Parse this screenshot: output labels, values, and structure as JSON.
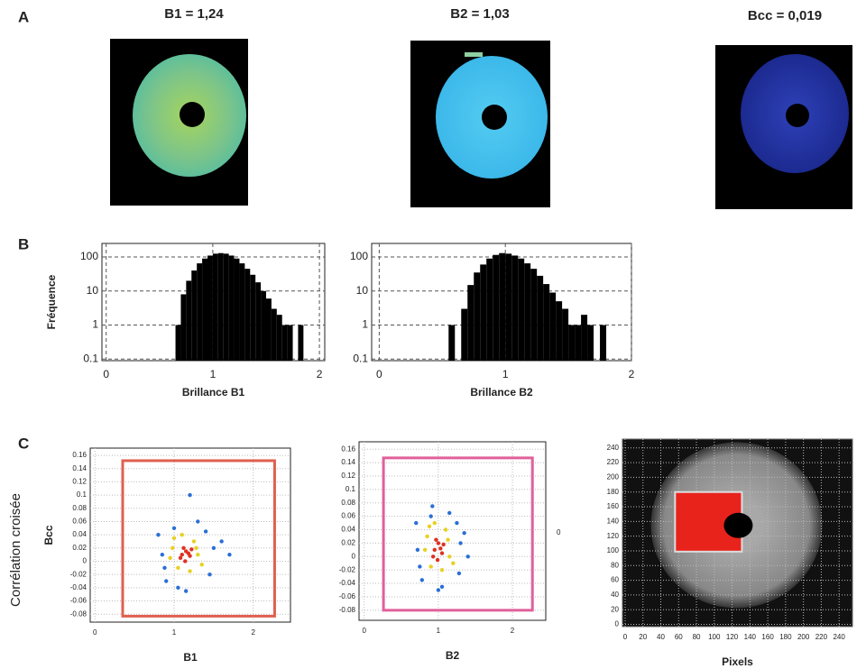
{
  "panel_labels": [
    "A",
    "B",
    "C"
  ],
  "images": [
    {
      "title": "B1 = 1,24"
    },
    {
      "title": "B2 = 1,03"
    },
    {
      "title": "Bcc = 0,019"
    }
  ],
  "side_label": "Corrélation croisée",
  "chart_data": [
    {
      "type": "histogram",
      "xlabel": "Brillance B1",
      "ylabel": "Fréquence",
      "log_y": true,
      "grid": true,
      "color": "#000000",
      "bins": [
        0.65,
        0.7,
        0.75,
        0.8,
        0.85,
        0.9,
        0.95,
        1.0,
        1.05,
        1.1,
        1.15,
        1.2,
        1.25,
        1.3,
        1.35,
        1.4,
        1.45,
        1.5,
        1.55,
        1.6,
        1.65,
        1.7,
        1.75,
        1.8,
        1.85,
        1.9
      ],
      "values": [
        1,
        8,
        20,
        40,
        65,
        90,
        110,
        125,
        130,
        125,
        110,
        90,
        65,
        45,
        30,
        18,
        10,
        6,
        3,
        2,
        1,
        1,
        0,
        1,
        0
      ],
      "xlim": [
        -0.04,
        2.05
      ],
      "xticks": [
        0,
        1,
        2
      ],
      "ylim": [
        0.09,
        250
      ],
      "yticks": [
        0.1,
        1,
        10,
        100
      ]
    },
    {
      "type": "histogram",
      "xlabel": "Brillance B2",
      "log_y": true,
      "grid": true,
      "color": "#000000",
      "bins": [
        0.55,
        0.6,
        0.65,
        0.7,
        0.75,
        0.8,
        0.85,
        0.9,
        0.95,
        1.0,
        1.05,
        1.1,
        1.15,
        1.2,
        1.25,
        1.3,
        1.35,
        1.4,
        1.45,
        1.5,
        1.55,
        1.6,
        1.65,
        1.7,
        1.75,
        1.8,
        1.85
      ],
      "values": [
        1,
        0,
        3,
        15,
        35,
        60,
        90,
        115,
        130,
        125,
        110,
        90,
        65,
        45,
        28,
        16,
        9,
        5,
        3,
        1,
        1,
        2,
        1,
        0,
        1,
        0
      ],
      "xlim": [
        -0.06,
        2.0
      ],
      "xticks": [
        0,
        1,
        2
      ],
      "ylim": [
        0.09,
        250
      ],
      "yticks": [
        0.1,
        1,
        10,
        100
      ]
    },
    {
      "type": "scatter",
      "xlabel": "B1",
      "ylabel": "Bcc",
      "grid": true,
      "xlim": [
        -0.06,
        2.47
      ],
      "xticks": [
        0,
        1,
        2
      ],
      "ylim": [
        -0.092,
        0.171
      ],
      "yticks": [
        0.16,
        0.14,
        0.12,
        0.1,
        0.08,
        0.06,
        0.04,
        0.02,
        0,
        -0.02,
        -0.04,
        -0.06,
        -0.08
      ],
      "selection": {
        "x": [
          0.35,
          2.27
        ],
        "y": [
          -0.083,
          0.152
        ],
        "color": "#e06050"
      },
      "series": [
        {
          "color": "#2a6fd6",
          "x": [
            0.85,
            1.5,
            0.9,
            1.45,
            1.6,
            0.8,
            1.0,
            1.3,
            1.7,
            1.15,
            0.88,
            1.4,
            1.2,
            1.05
          ],
          "values": [
            0.01,
            0.02,
            -0.03,
            -0.02,
            0.03,
            0.04,
            0.05,
            0.06,
            0.01,
            -0.045,
            -0.01,
            0.045,
            0.1,
            -0.04
          ]
        },
        {
          "color": "#e8d020",
          "x": [
            0.98,
            1.3,
            1.05,
            1.25,
            1.0,
            1.35,
            1.1,
            1.2,
            0.95,
            1.28
          ],
          "values": [
            0.02,
            0.01,
            -0.01,
            0.03,
            0.035,
            -0.005,
            0.04,
            -0.015,
            0.005,
            0.02
          ]
        },
        {
          "color": "#e03020",
          "x": [
            1.1,
            1.15,
            1.2,
            1.12,
            1.18,
            1.08,
            1.22,
            1.14
          ],
          "values": [
            0.01,
            0.015,
            0.008,
            0.02,
            0.012,
            0.005,
            0.018,
            0
          ]
        }
      ]
    },
    {
      "type": "scatter",
      "xlabel": "B2",
      "annotation": "0",
      "grid": true,
      "xlim": [
        -0.07,
        2.45
      ],
      "xticks": [
        0,
        1,
        2
      ],
      "ylim": [
        -0.095,
        0.171
      ],
      "yticks": [
        0.16,
        0.14,
        0.12,
        0.1,
        0.08,
        0.06,
        0.04,
        0.02,
        0,
        -0.02,
        -0.04,
        -0.06,
        -0.08
      ],
      "selection": {
        "x": [
          0.26,
          2.27
        ],
        "y": [
          -0.08,
          0.147
        ],
        "color": "#e0609a"
      },
      "series": [
        {
          "color": "#2a6fd6",
          "x": [
            0.72,
            1.3,
            0.78,
            1.28,
            1.35,
            0.7,
            0.9,
            1.15,
            1.4,
            1.0,
            0.75,
            1.25,
            1.05,
            0.92
          ],
          "values": [
            0.01,
            0.02,
            -0.035,
            -0.025,
            0.035,
            0.05,
            0.06,
            0.065,
            0,
            -0.05,
            -0.015,
            0.05,
            -0.045,
            0.075
          ]
        },
        {
          "color": "#e8d020",
          "x": [
            0.85,
            1.15,
            0.9,
            1.1,
            0.88,
            1.2,
            0.95,
            1.05,
            0.82,
            1.13
          ],
          "values": [
            0.03,
            0,
            -0.015,
            0.04,
            0.045,
            -0.01,
            0.05,
            -0.02,
            0.01,
            0.025
          ]
        },
        {
          "color": "#e03020",
          "x": [
            0.95,
            1.0,
            1.05,
            0.97,
            1.03,
            0.93,
            1.07,
            0.99
          ],
          "values": [
            0.01,
            0.02,
            0.005,
            0.025,
            0.012,
            0,
            0.018,
            -0.005
          ]
        }
      ]
    },
    {
      "type": "image",
      "xlabel": "Pixels",
      "grid": true,
      "xlim": [
        -3,
        255
      ],
      "ylim": [
        -3,
        252
      ],
      "xticks": [
        0,
        20,
        40,
        60,
        80,
        100,
        120,
        140,
        160,
        180,
        200,
        220,
        240
      ],
      "yticks": [
        0,
        20,
        40,
        60,
        80,
        100,
        120,
        140,
        160,
        180,
        200,
        220,
        240
      ],
      "region": {
        "x": [
          56,
          131
        ],
        "y": [
          99,
          180
        ],
        "color": "#e8231c"
      }
    }
  ]
}
